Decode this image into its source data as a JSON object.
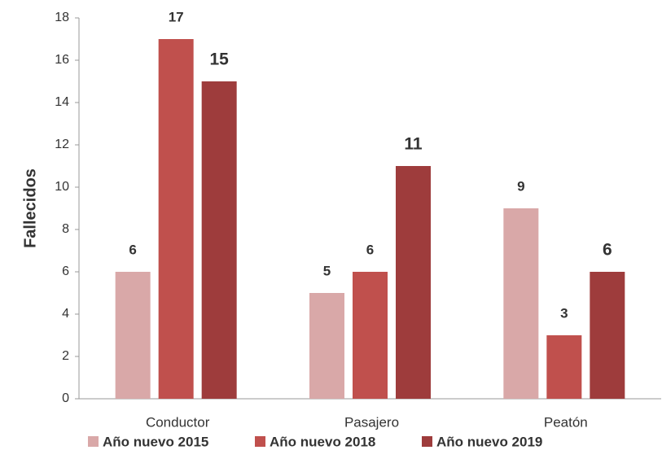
{
  "chart_data": {
    "type": "bar",
    "y_label": "Fallecidos",
    "categories": [
      "Conductor",
      "Pasajero",
      "Peatón"
    ],
    "series": [
      {
        "name": "Año nuevo 2015",
        "color": "#d9a8a8",
        "values": [
          6,
          5,
          9
        ]
      },
      {
        "name": "Año nuevo 2018",
        "color": "#c0504d",
        "values": [
          17,
          6,
          3
        ]
      },
      {
        "name": "Año nuevo 2019",
        "color": "#9e3c3c",
        "values": [
          15,
          11,
          6
        ]
      }
    ],
    "ylim": [
      0,
      18
    ],
    "yticks": [
      0,
      2,
      4,
      6,
      8,
      10,
      12,
      14,
      16,
      18
    ],
    "grid": false,
    "legend": "bottom"
  }
}
